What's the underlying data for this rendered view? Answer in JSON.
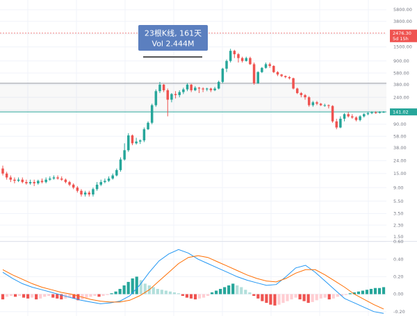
{
  "chart_data": [
    {
      "type": "candlestick",
      "scale": "log",
      "ylim": [
        1.5,
        5800
      ],
      "y_ticks": [
        "5800.00",
        "3800.00",
        "2400.00",
        "1500.00",
        "900.00",
        "580.00",
        "380.00",
        "240.00",
        "150.00",
        "90.00",
        "58.00",
        "38.00",
        "24.00",
        "15.00",
        "9.00",
        "5.50",
        "3.50",
        "2.30",
        "1.50"
      ],
      "y_tick_values": [
        5800,
        3800,
        2400,
        1500,
        900,
        580,
        380,
        240,
        150,
        90,
        58,
        38,
        24,
        15,
        9,
        5.5,
        3.5,
        2.3,
        1.5
      ],
      "grid": true,
      "colors": {
        "up": "#26a69a",
        "down": "#ef5350",
        "grid": "#f0f3fa",
        "axis_text": "#787b86"
      },
      "price_labels": [
        {
          "label": "2476.30",
          "sub_label": "5d 15h",
          "value": 2476.3,
          "color": "#ef5350",
          "style": "dashed"
        },
        {
          "label": "141.02",
          "value": 141.02,
          "color": "#26a69a",
          "style": "solid"
        }
      ],
      "reference_lines": [
        {
          "value": 400,
          "color": "#9598a1"
        },
        {
          "value": 141.02,
          "color": "#26a69a"
        }
      ],
      "annotation": {
        "line1": "23根K线, 161天",
        "line2": "Vol 2.444M",
        "color": "#5b7fbf",
        "range_top": 400,
        "range_bottom": 141.02
      },
      "candles": [
        [
          18,
          15,
          20,
          14
        ],
        [
          15,
          13,
          16,
          12
        ],
        [
          13,
          12,
          14,
          11
        ],
        [
          12,
          11.5,
          13,
          10.5
        ],
        [
          11.5,
          12,
          13,
          11
        ],
        [
          12,
          11,
          13,
          10.5
        ],
        [
          11,
          10.5,
          12,
          10
        ],
        [
          10.5,
          11,
          12,
          10
        ],
        [
          11,
          10.5,
          12,
          9.5
        ],
        [
          10.5,
          11.5,
          12,
          10
        ],
        [
          11.5,
          11,
          12.5,
          10.5
        ],
        [
          11,
          12,
          13,
          10.5
        ],
        [
          12,
          12.5,
          13.5,
          11.5
        ],
        [
          12.5,
          13,
          14,
          12
        ],
        [
          13,
          12.5,
          14,
          12
        ],
        [
          12.5,
          12,
          13.5,
          11.5
        ],
        [
          12,
          11,
          12.5,
          10.5
        ],
        [
          11,
          10,
          11.5,
          9.5
        ],
        [
          10,
          9,
          10.5,
          8.5
        ],
        [
          9,
          8,
          9.5,
          7.5
        ],
        [
          8,
          7,
          8.5,
          6.5
        ],
        [
          7,
          7.5,
          8,
          6.5
        ],
        [
          7.5,
          7,
          8,
          6.5
        ],
        [
          7,
          8.5,
          9,
          6.5
        ],
        [
          8.5,
          10,
          11,
          8
        ],
        [
          10,
          11,
          12,
          9.5
        ],
        [
          11,
          11.5,
          12.5,
          10.5
        ],
        [
          11.5,
          12.5,
          13.5,
          11
        ],
        [
          12.5,
          14,
          15,
          12
        ],
        [
          14,
          17,
          18,
          13.5
        ],
        [
          17,
          25,
          27,
          16
        ],
        [
          25,
          35,
          45,
          24
        ],
        [
          35,
          60,
          65,
          33
        ],
        [
          60,
          45,
          62,
          42
        ],
        [
          45,
          48,
          55,
          43
        ],
        [
          48,
          50,
          52,
          44
        ],
        [
          50,
          75,
          80,
          47
        ],
        [
          75,
          95,
          100,
          73
        ],
        [
          95,
          180,
          190,
          90
        ],
        [
          180,
          300,
          320,
          170
        ],
        [
          300,
          380,
          420,
          280
        ],
        [
          380,
          310,
          390,
          290
        ],
        [
          310,
          220,
          330,
          120
        ],
        [
          220,
          270,
          280,
          200
        ],
        [
          270,
          260,
          300,
          230
        ],
        [
          260,
          290,
          310,
          240
        ],
        [
          290,
          320,
          340,
          270
        ],
        [
          320,
          380,
          400,
          300
        ],
        [
          380,
          310,
          390,
          290
        ],
        [
          310,
          340,
          360,
          300
        ],
        [
          340,
          330,
          350,
          280
        ],
        [
          330,
          320,
          345,
          290
        ],
        [
          320,
          330,
          340,
          300
        ],
        [
          330,
          310,
          340,
          290
        ],
        [
          310,
          330,
          350,
          300
        ],
        [
          330,
          420,
          440,
          320
        ],
        [
          420,
          680,
          700,
          400
        ],
        [
          680,
          900,
          950,
          600
        ],
        [
          900,
          1300,
          1400,
          850
        ],
        [
          1300,
          1150,
          1350,
          1000
        ],
        [
          1150,
          1000,
          1200,
          850
        ],
        [
          1000,
          900,
          1050,
          850
        ],
        [
          900,
          1000,
          1050,
          880
        ],
        [
          1000,
          800,
          1050,
          780
        ],
        [
          800,
          400,
          850,
          380
        ],
        [
          400,
          600,
          620,
          390
        ],
        [
          600,
          700,
          720,
          580
        ],
        [
          700,
          800,
          850,
          680
        ],
        [
          800,
          750,
          850,
          700
        ],
        [
          750,
          600,
          770,
          580
        ],
        [
          600,
          550,
          620,
          520
        ],
        [
          550,
          520,
          560,
          500
        ],
        [
          520,
          500,
          530,
          480
        ],
        [
          500,
          480,
          520,
          460
        ],
        [
          480,
          330,
          490,
          320
        ],
        [
          330,
          280,
          340,
          270
        ],
        [
          280,
          260,
          290,
          240
        ],
        [
          260,
          240,
          270,
          220
        ],
        [
          240,
          180,
          250,
          170
        ],
        [
          180,
          200,
          210,
          170
        ],
        [
          200,
          190,
          210,
          180
        ],
        [
          190,
          180,
          195,
          175
        ],
        [
          180,
          180,
          190,
          170
        ],
        [
          180,
          175,
          185,
          160
        ],
        [
          175,
          100,
          180,
          95
        ],
        [
          100,
          80,
          110,
          75
        ],
        [
          80,
          110,
          120,
          78
        ],
        [
          110,
          130,
          135,
          100
        ],
        [
          130,
          120,
          140,
          115
        ],
        [
          120,
          115,
          130,
          110
        ],
        [
          115,
          105,
          120,
          100
        ],
        [
          105,
          120,
          125,
          100
        ],
        [
          120,
          130,
          135,
          115
        ],
        [
          130,
          135,
          140,
          125
        ],
        [
          135,
          138,
          145,
          130
        ],
        [
          138,
          136,
          145,
          132
        ],
        [
          136,
          140,
          145,
          133
        ],
        [
          140,
          141.02,
          145,
          136
        ]
      ]
    },
    {
      "type": "line",
      "name": "MACD",
      "ylim": [
        -0.25,
        0.6
      ],
      "y_ticks": [
        "0.60",
        "0.40",
        "0.20",
        "0.00",
        "-0.20"
      ],
      "y_tick_values": [
        0.6,
        0.4,
        0.2,
        0.0,
        -0.2
      ],
      "colors": {
        "macd": "#2196f3",
        "signal": "#ff6d00",
        "hist_pos_strong": "#26a69a",
        "hist_pos_weak": "#b2dfdb",
        "hist_neg_strong": "#ef5350",
        "hist_neg_weak": "#ffcdd2"
      },
      "series": [
        {
          "values": [
            0.25,
            0.18,
            0.12,
            0.08,
            0.05,
            0.02,
            -0.01,
            -0.04,
            -0.07,
            -0.09,
            -0.11,
            -0.1,
            -0.08,
            -0.02,
            0.1,
            0.25,
            0.38,
            0.46,
            0.51,
            0.47,
            0.4,
            0.35,
            0.3,
            0.25,
            0.2,
            0.16,
            0.13,
            0.1,
            0.11,
            0.2,
            0.3,
            0.33,
            0.25,
            0.15,
            0.05,
            -0.05,
            -0.1,
            -0.15,
            -0.2,
            -0.22
          ]
        },
        {
          "values": [
            0.28,
            0.22,
            0.17,
            0.12,
            0.08,
            0.05,
            0.02,
            0.0,
            -0.03,
            -0.06,
            -0.08,
            -0.09,
            -0.09,
            -0.07,
            -0.02,
            0.05,
            0.15,
            0.25,
            0.35,
            0.42,
            0.44,
            0.42,
            0.37,
            0.32,
            0.27,
            0.22,
            0.18,
            0.15,
            0.14,
            0.18,
            0.24,
            0.28,
            0.28,
            0.22,
            0.15,
            0.08,
            0.0,
            -0.06,
            -0.12,
            -0.17
          ]
        }
      ],
      "histogram": [
        -0.06,
        -0.03,
        -0.02,
        -0.03,
        -0.02,
        -0.04,
        -0.05,
        -0.04,
        -0.06,
        -0.05,
        -0.03,
        -0.02,
        -0.04,
        -0.05,
        -0.06,
        -0.05,
        -0.04,
        -0.05,
        -0.07,
        -0.06,
        -0.04,
        -0.03,
        -0.02,
        -0.03,
        -0.02,
        -0.01,
        0.01,
        0.03,
        0.06,
        0.1,
        0.14,
        0.18,
        0.2,
        0.16,
        0.12,
        0.1,
        0.08,
        0.06,
        0.05,
        0.04,
        0.03,
        0.02,
        0.01,
        -0.02,
        -0.04,
        -0.05,
        -0.06,
        -0.05,
        -0.04,
        -0.02,
        0.02,
        0.04,
        0.06,
        0.08,
        0.1,
        0.12,
        0.1,
        0.08,
        0.05,
        0.02,
        -0.02,
        -0.05,
        -0.08,
        -0.1,
        -0.12,
        -0.13,
        -0.12,
        -0.1,
        -0.08,
        -0.06,
        -0.04,
        -0.06,
        -0.08,
        -0.1,
        -0.09,
        -0.07,
        -0.05,
        -0.04,
        -0.06,
        -0.05,
        -0.03,
        -0.02,
        -0.01,
        0.01,
        0.02,
        0.03,
        0.04,
        0.05,
        0.06,
        0.07,
        0.07,
        0.08
      ]
    }
  ]
}
